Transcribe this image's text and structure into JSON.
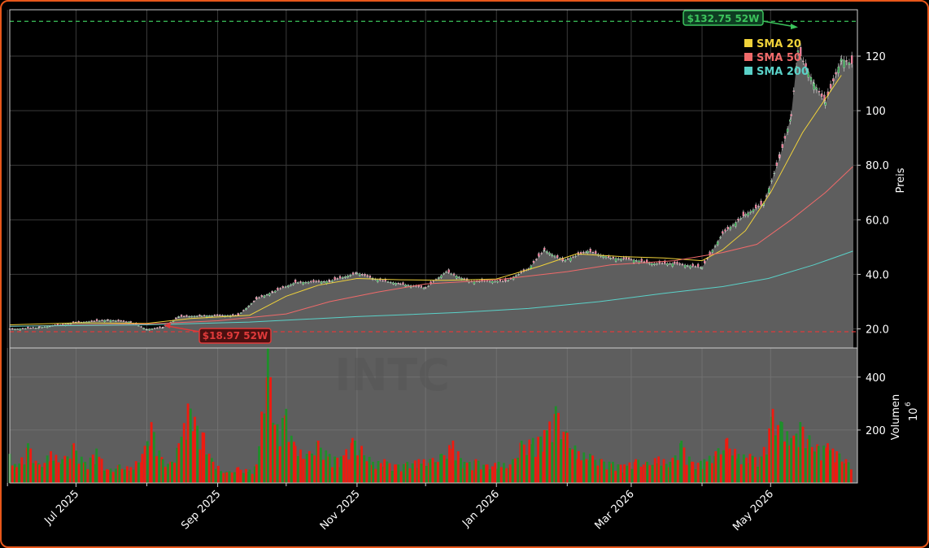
{
  "chart_data": {
    "type": "candlestick",
    "ticker_watermark": "INTC",
    "price_panel": {
      "ylabel": "Preis",
      "yticks": [
        20,
        40,
        60,
        80,
        100,
        120
      ],
      "ytick_labels": [
        "20.0",
        "40.0",
        "60.0",
        "80.0",
        "100",
        "120"
      ],
      "ylim": [
        13,
        137
      ],
      "grid": true,
      "legend_position": "top-right",
      "high_52w": {
        "value": 132.75,
        "label": "$132.75 52W",
        "date": "2026-05-13",
        "color": "#3cc45c"
      },
      "low_52w": {
        "value": 18.97,
        "label": "$18.97 52W",
        "date": "2025-08-01",
        "color": "#e03a3a"
      }
    },
    "volume_panel": {
      "ylabel": "Volumen",
      "unit_label": "10",
      "unit_exp": "6",
      "yticks": [
        200,
        400
      ],
      "ylim": [
        0,
        510
      ]
    },
    "x_axis": {
      "range": [
        "2025-06-02",
        "2026-06-08"
      ],
      "ticks": [
        {
          "date": "2025-07-01",
          "label": "Jul 2025"
        },
        {
          "date": "2025-09-01",
          "label": "Sep 2025"
        },
        {
          "date": "2025-11-01",
          "label": "Nov 2025"
        },
        {
          "date": "2026-01-01",
          "label": "Jan 2026"
        },
        {
          "date": "2026-03-01",
          "label": "Mar 2026"
        },
        {
          "date": "2026-05-01",
          "label": "May 2026"
        }
      ],
      "minor_ticks": [
        "2025-06-01",
        "2025-08-01",
        "2025-10-01",
        "2025-12-01",
        "2026-02-01",
        "2026-04-01"
      ]
    },
    "series": [
      {
        "name": "SMA 20",
        "color": "#f0d23a",
        "points": [
          [
            "2025-06-02",
            21.5
          ],
          [
            "2025-07-01",
            22.2
          ],
          [
            "2025-08-01",
            22.0
          ],
          [
            "2025-08-20",
            23.8
          ],
          [
            "2025-09-15",
            25.0
          ],
          [
            "2025-10-01",
            32.0
          ],
          [
            "2025-10-15",
            36.0
          ],
          [
            "2025-11-01",
            38.5
          ],
          [
            "2025-11-20",
            38.0
          ],
          [
            "2025-12-10",
            37.8
          ],
          [
            "2026-01-01",
            38.3
          ],
          [
            "2026-01-20",
            43.0
          ],
          [
            "2026-02-05",
            47.5
          ],
          [
            "2026-02-25",
            46.5
          ],
          [
            "2026-03-15",
            46.0
          ],
          [
            "2026-04-01",
            45.0
          ],
          [
            "2026-04-10",
            49.0
          ],
          [
            "2026-04-20",
            56.0
          ],
          [
            "2026-05-01",
            70.0
          ],
          [
            "2026-05-15",
            92.0
          ],
          [
            "2026-06-01",
            113.0
          ]
        ]
      },
      {
        "name": "SMA 50",
        "color": "#f06a6a",
        "points": [
          [
            "2025-06-02",
            21.0
          ],
          [
            "2025-08-01",
            21.8
          ],
          [
            "2025-09-01",
            23.0
          ],
          [
            "2025-10-01",
            25.5
          ],
          [
            "2025-10-20",
            30.0
          ],
          [
            "2025-11-10",
            33.5
          ],
          [
            "2025-12-01",
            36.5
          ],
          [
            "2026-01-01",
            38.0
          ],
          [
            "2026-02-01",
            41.0
          ],
          [
            "2026-02-20",
            43.5
          ],
          [
            "2026-03-20",
            45.0
          ],
          [
            "2026-04-10",
            48.0
          ],
          [
            "2026-04-25",
            51.0
          ],
          [
            "2026-05-10",
            60.0
          ],
          [
            "2026-05-25",
            70.0
          ],
          [
            "2026-06-06",
            79.5
          ]
        ]
      },
      {
        "name": "SMA 200",
        "color": "#5ad1c8",
        "points": [
          [
            "2025-06-02",
            21.0
          ],
          [
            "2025-08-01",
            21.5
          ],
          [
            "2025-09-15",
            22.5
          ],
          [
            "2025-11-01",
            24.5
          ],
          [
            "2025-12-15",
            26.0
          ],
          [
            "2026-01-15",
            27.5
          ],
          [
            "2026-02-15",
            30.0
          ],
          [
            "2026-03-15",
            33.0
          ],
          [
            "2026-04-10",
            35.5
          ],
          [
            "2026-04-30",
            38.5
          ],
          [
            "2026-05-20",
            43.5
          ],
          [
            "2026-06-06",
            48.5
          ]
        ]
      }
    ],
    "close_approx": [
      [
        "2025-06-02",
        19.8
      ],
      [
        "2025-06-15",
        20.5
      ],
      [
        "2025-07-01",
        22.3
      ],
      [
        "2025-07-15",
        23.3
      ],
      [
        "2025-07-25",
        22.5
      ],
      [
        "2025-08-01",
        19.8
      ],
      [
        "2025-08-08",
        20.5
      ],
      [
        "2025-08-15",
        24.5
      ],
      [
        "2025-08-25",
        24.8
      ],
      [
        "2025-09-10",
        25.0
      ],
      [
        "2025-09-18",
        31.0
      ],
      [
        "2025-09-25",
        33.5
      ],
      [
        "2025-10-05",
        37.0
      ],
      [
        "2025-10-20",
        37.5
      ],
      [
        "2025-11-01",
        40.5
      ],
      [
        "2025-11-10",
        38.0
      ],
      [
        "2025-11-20",
        36.5
      ],
      [
        "2025-12-01",
        35.0
      ],
      [
        "2025-12-10",
        41.0
      ],
      [
        "2025-12-20",
        37.5
      ],
      [
        "2026-01-05",
        37.5
      ],
      [
        "2026-01-15",
        42.0
      ],
      [
        "2026-01-22",
        49.0
      ],
      [
        "2026-01-30",
        45.0
      ],
      [
        "2026-02-10",
        48.5
      ],
      [
        "2026-02-20",
        46.0
      ],
      [
        "2026-03-01",
        45.5
      ],
      [
        "2026-03-10",
        44.0
      ],
      [
        "2026-03-20",
        44.0
      ],
      [
        "2026-04-01",
        42.5
      ],
      [
        "2026-04-10",
        55.0
      ],
      [
        "2026-04-20",
        62.0
      ],
      [
        "2026-04-28",
        66.0
      ],
      [
        "2026-05-05",
        83.0
      ],
      [
        "2026-05-10",
        98.0
      ],
      [
        "2026-05-13",
        122.0
      ],
      [
        "2026-05-20",
        110.0
      ],
      [
        "2026-05-25",
        103.0
      ],
      [
        "2026-06-01",
        119.0
      ],
      [
        "2026-06-06",
        117.0
      ]
    ],
    "volume_approx": [
      [
        "2025-06-02",
        110
      ],
      [
        "2025-06-05",
        60
      ],
      [
        "2025-06-10",
        150
      ],
      [
        "2025-06-15",
        70
      ],
      [
        "2025-06-20",
        120
      ],
      [
        "2025-06-25",
        90
      ],
      [
        "2025-06-30",
        150
      ],
      [
        "2025-07-05",
        80
      ],
      [
        "2025-07-10",
        130
      ],
      [
        "2025-07-15",
        50
      ],
      [
        "2025-07-20",
        70
      ],
      [
        "2025-07-25",
        60
      ],
      [
        "2025-07-30",
        110
      ],
      [
        "2025-08-03",
        230
      ],
      [
        "2025-08-08",
        90
      ],
      [
        "2025-08-12",
        80
      ],
      [
        "2025-08-15",
        150
      ],
      [
        "2025-08-19",
        300
      ],
      [
        "2025-08-22",
        250
      ],
      [
        "2025-08-26",
        190
      ],
      [
        "2025-08-30",
        80
      ],
      [
        "2025-09-05",
        40
      ],
      [
        "2025-09-10",
        60
      ],
      [
        "2025-09-15",
        50
      ],
      [
        "2025-09-18",
        70
      ],
      [
        "2025-09-23",
        510
      ],
      [
        "2025-09-26",
        220
      ],
      [
        "2025-10-01",
        280
      ],
      [
        "2025-10-05",
        140
      ],
      [
        "2025-10-10",
        110
      ],
      [
        "2025-10-15",
        160
      ],
      [
        "2025-10-20",
        110
      ],
      [
        "2025-10-25",
        100
      ],
      [
        "2025-10-30",
        170
      ],
      [
        "2025-11-03",
        140
      ],
      [
        "2025-11-08",
        80
      ],
      [
        "2025-11-13",
        90
      ],
      [
        "2025-11-18",
        70
      ],
      [
        "2025-11-23",
        80
      ],
      [
        "2025-11-28",
        90
      ],
      [
        "2025-12-03",
        90
      ],
      [
        "2025-12-08",
        110
      ],
      [
        "2025-12-13",
        160
      ],
      [
        "2025-12-18",
        80
      ],
      [
        "2025-12-23",
        90
      ],
      [
        "2025-12-28",
        70
      ],
      [
        "2026-01-02",
        80
      ],
      [
        "2026-01-07",
        70
      ],
      [
        "2026-01-12",
        160
      ],
      [
        "2026-01-17",
        170
      ],
      [
        "2026-01-22",
        200
      ],
      [
        "2026-01-27",
        290
      ],
      [
        "2026-02-01",
        190
      ],
      [
        "2026-02-06",
        120
      ],
      [
        "2026-02-11",
        110
      ],
      [
        "2026-02-16",
        90
      ],
      [
        "2026-02-21",
        80
      ],
      [
        "2026-02-26",
        70
      ],
      [
        "2026-03-03",
        90
      ],
      [
        "2026-03-08",
        80
      ],
      [
        "2026-03-13",
        100
      ],
      [
        "2026-03-18",
        80
      ],
      [
        "2026-03-23",
        160
      ],
      [
        "2026-03-28",
        80
      ],
      [
        "2026-04-02",
        90
      ],
      [
        "2026-04-07",
        120
      ],
      [
        "2026-04-12",
        170
      ],
      [
        "2026-04-17",
        110
      ],
      [
        "2026-04-22",
        110
      ],
      [
        "2026-04-27",
        100
      ],
      [
        "2026-05-02",
        280
      ],
      [
        "2026-05-06",
        230
      ],
      [
        "2026-05-10",
        170
      ],
      [
        "2026-05-14",
        230
      ],
      [
        "2026-05-18",
        180
      ],
      [
        "2026-05-22",
        140
      ],
      [
        "2026-05-26",
        150
      ],
      [
        "2026-05-30",
        120
      ],
      [
        "2026-06-03",
        90
      ],
      [
        "2026-06-06",
        80
      ]
    ]
  }
}
